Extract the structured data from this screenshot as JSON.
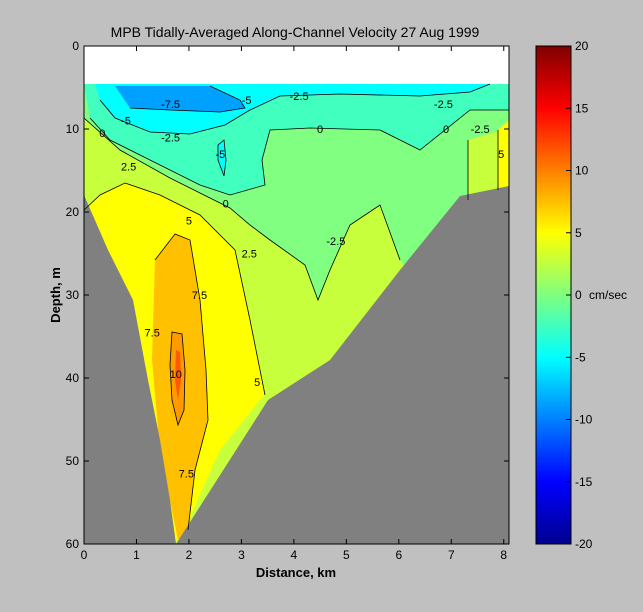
{
  "chart_data": {
    "type": "contour",
    "title": "MPB   Tidally-Averaged  Along-Channel Velocity   27 Aug 1999",
    "xlabel": "Distance, km",
    "ylabel": "Depth, m",
    "xlim": [
      0,
      8.1
    ],
    "ylim": [
      60,
      0
    ],
    "y_reversed": true,
    "xticks": [
      "0",
      "1",
      "2",
      "3",
      "4",
      "5",
      "6",
      "7",
      "8"
    ],
    "yticks": [
      "0",
      "10",
      "20",
      "30",
      "40",
      "50",
      "60"
    ],
    "colorbar": {
      "range": [
        -20,
        20
      ],
      "ticks": [
        "20",
        "15",
        "10",
        "5",
        "0",
        "-5",
        "-10",
        "-15",
        "-20"
      ],
      "unit_label": "cm/sec",
      "colormap": "jet"
    },
    "contour_labels": [
      {
        "text": "-7.5",
        "x": 1.65,
        "y": 7.0
      },
      {
        "text": "-5",
        "x": 3.1,
        "y": 6.5
      },
      {
        "text": "-2.5",
        "x": 4.1,
        "y": 6.0
      },
      {
        "text": "-2.5",
        "x": 6.85,
        "y": 7.0
      },
      {
        "text": "-5",
        "x": 0.8,
        "y": 9.0
      },
      {
        "text": "-2.5",
        "x": 1.65,
        "y": 11.0
      },
      {
        "text": "0",
        "x": 0.35,
        "y": 10.5
      },
      {
        "text": "0",
        "x": 4.5,
        "y": 10.0
      },
      {
        "text": "0",
        "x": 6.9,
        "y": 10.0
      },
      {
        "text": "-2.5",
        "x": 7.55,
        "y": 10.0
      },
      {
        "text": "-5",
        "x": 2.6,
        "y": 13.0
      },
      {
        "text": "5",
        "x": 7.95,
        "y": 13.0
      },
      {
        "text": "2.5",
        "x": 0.85,
        "y": 14.5
      },
      {
        "text": "0",
        "x": 2.7,
        "y": 19.0
      },
      {
        "text": "5",
        "x": 2.0,
        "y": 21.0
      },
      {
        "text": "2.5",
        "x": 3.15,
        "y": 25.0
      },
      {
        "text": "-2.5",
        "x": 4.8,
        "y": 23.5
      },
      {
        "text": "7.5",
        "x": 2.2,
        "y": 30.0
      },
      {
        "text": "7.5",
        "x": 1.3,
        "y": 34.5
      },
      {
        "text": "10",
        "x": 1.75,
        "y": 39.5
      },
      {
        "text": "5",
        "x": 3.3,
        "y": 40.5
      },
      {
        "text": "7.5",
        "x": 1.95,
        "y": 51.5
      }
    ],
    "velocity_regions_cm_per_sec": [
      {
        "level": -7.5,
        "description": "core near surface around 1.5-3 km"
      },
      {
        "level": 10,
        "description": "core near 1.8 km at 35-45 m depth"
      }
    ]
  }
}
